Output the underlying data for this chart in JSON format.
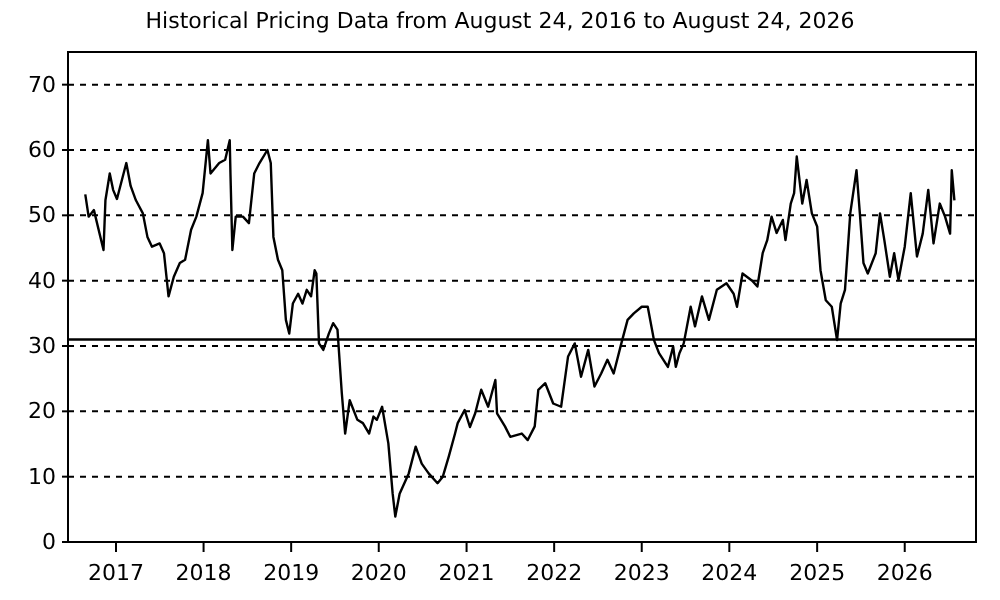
{
  "chart_data": {
    "type": "line",
    "title": "Historical Pricing Data from August 24, 2016 to August 24, 2026",
    "x": [
      "2016-08-26",
      "2016-09-09",
      "2016-10-01",
      "2016-11-10",
      "2016-11-18",
      "2016-12-06",
      "2016-12-20",
      "2017-01-05",
      "2017-02-13",
      "2017-03-03",
      "2017-03-25",
      "2017-04-23",
      "2017-05-12",
      "2017-05-31",
      "2017-07-02",
      "2017-07-20",
      "2017-08-08",
      "2017-08-30",
      "2017-09-24",
      "2017-10-16",
      "2017-11-10",
      "2017-12-02",
      "2017-12-28",
      "2018-01-19",
      "2018-01-30",
      "2018-03-07",
      "2018-04-01",
      "2018-04-20",
      "2018-04-23",
      "2018-05-01",
      "2018-05-15",
      "2018-06-14",
      "2018-07-09",
      "2018-07-31",
      "2018-08-22",
      "2018-09-24",
      "2018-10-08",
      "2018-10-19",
      "2018-11-07",
      "2018-11-25",
      "2018-12-10",
      "2018-12-24",
      "2019-01-08",
      "2019-01-30",
      "2019-02-17",
      "2019-03-07",
      "2019-03-25",
      "2019-04-09",
      "2019-04-16",
      "2019-04-27",
      "2019-05-15",
      "2019-06-07",
      "2019-06-25",
      "2019-07-13",
      "2019-07-31",
      "2019-08-14",
      "2019-09-02",
      "2019-10-04",
      "2019-10-27",
      "2019-11-22",
      "2019-12-10",
      "2019-12-24",
      "2020-01-15",
      "2020-02-10",
      "2020-02-28",
      "2020-03-10",
      "2020-03-28",
      "2020-05-05",
      "2020-06-03",
      "2020-06-28",
      "2020-07-27",
      "2020-09-02",
      "2020-09-24",
      "2020-10-19",
      "2020-11-14",
      "2020-11-25",
      "2020-12-24",
      "2021-01-15",
      "2021-02-06",
      "2021-03-03",
      "2021-04-01",
      "2021-05-01",
      "2021-05-08",
      "2021-06-10",
      "2021-07-02",
      "2021-08-19",
      "2021-09-13",
      "2021-10-12",
      "2021-10-27",
      "2021-11-25",
      "2021-12-28",
      "2022-01-30",
      "2022-02-28",
      "2022-03-28",
      "2022-04-23",
      "2022-05-23",
      "2022-06-18",
      "2022-07-16",
      "2022-08-11",
      "2022-09-06",
      "2022-10-08",
      "2022-11-03",
      "2022-11-29",
      "2023-01-01",
      "2023-01-26",
      "2023-02-21",
      "2023-03-14",
      "2023-04-20",
      "2023-05-12",
      "2023-05-23",
      "2023-06-07",
      "2023-06-25",
      "2023-07-24",
      "2023-08-11",
      "2023-09-09",
      "2023-10-08",
      "2023-11-10",
      "2023-12-20",
      "2024-01-19",
      "2024-02-02",
      "2024-02-25",
      "2024-04-05",
      "2024-04-27",
      "2024-05-19",
      "2024-06-07",
      "2024-06-25",
      "2024-07-16",
      "2024-08-11",
      "2024-08-22",
      "2024-09-13",
      "2024-09-27",
      "2024-10-08",
      "2024-10-31",
      "2024-11-18",
      "2024-12-10",
      "2025-01-01",
      "2025-01-15",
      "2025-02-06",
      "2025-03-03",
      "2025-03-25",
      "2025-04-09",
      "2025-04-27",
      "2025-05-19",
      "2025-06-14",
      "2025-06-28",
      "2025-07-13",
      "2025-07-31",
      "2025-09-02",
      "2025-09-20",
      "2025-10-08",
      "2025-10-31",
      "2025-11-18",
      "2025-12-06",
      "2026-01-01",
      "2026-01-26",
      "2026-02-21",
      "2026-03-17",
      "2026-04-09",
      "2026-05-01",
      "2026-05-27",
      "2026-06-18",
      "2026-07-09",
      "2026-07-16",
      "2026-07-27"
    ],
    "series": [
      {
        "color": "#000000",
        "values": [
          53.2,
          49.8,
          50.8,
          44.7,
          52.3,
          56.4,
          53.9,
          52.5,
          58,
          54.5,
          52.3,
          50.3,
          46.7,
          45.2,
          45.7,
          44.2,
          37.6,
          40.6,
          42.7,
          43.2,
          47.8,
          49.8,
          53.4,
          61.5,
          56.4,
          58,
          58.5,
          61.5,
          56.4,
          44.7,
          49.8,
          49.8,
          48.8,
          56.4,
          58,
          60,
          58,
          46.7,
          43.2,
          41.6,
          34,
          31.9,
          36.5,
          38,
          36.5,
          38.6,
          37.6,
          41.6,
          41.1,
          30.4,
          29.4,
          31.9,
          33.5,
          32.5,
          22.8,
          16.6,
          21.7,
          18.7,
          18.2,
          16.6,
          19.2,
          18.7,
          20.7,
          15.1,
          7.4,
          3.9,
          7.4,
          10.5,
          14.6,
          12,
          10.5,
          9,
          10,
          13.1,
          16.6,
          18.2,
          20.2,
          17.6,
          19.7,
          23.3,
          20.7,
          24.8,
          19.7,
          17.7,
          16.1,
          16.6,
          15.6,
          17.7,
          23.3,
          24.3,
          21.2,
          20.7,
          28.4,
          30.4,
          25.3,
          29.4,
          23.8,
          25.8,
          27.9,
          25.8,
          30.4,
          34,
          35,
          36,
          36,
          30.9,
          28.9,
          26.8,
          29.9,
          26.8,
          28.9,
          30.4,
          36,
          33,
          37.6,
          34,
          38.6,
          39.6,
          38,
          36,
          41.1,
          40,
          39.1,
          44.2,
          46.2,
          49.8,
          47.3,
          49.3,
          46.2,
          51.8,
          53.4,
          59,
          51.8,
          55.4,
          50.3,
          48.3,
          41.6,
          37,
          36,
          30.9,
          36.5,
          38.6,
          50.3,
          56.9,
          50.3,
          42.7,
          41.1,
          44.2,
          50.3,
          46.2,
          40.6,
          44.2,
          40.1,
          45.2,
          53.4,
          43.7,
          47.2,
          53.9,
          45.7,
          51.8,
          49.8,
          47.2,
          56.9,
          52.3
        ]
      }
    ],
    "xlim": [
      "2016-06-15",
      "2026-10-25"
    ],
    "xticks": [
      "2017",
      "2018",
      "2019",
      "2020",
      "2021",
      "2022",
      "2023",
      "2024",
      "2025",
      "2026"
    ],
    "ylim": [
      0,
      75
    ],
    "yticks": [
      0,
      10,
      20,
      30,
      40,
      50,
      60,
      70
    ],
    "grid": "y",
    "line_style": "solid",
    "marker": "none",
    "ref_lines": [
      {
        "axis": "y",
        "value": 31,
        "color": "#000000"
      }
    ]
  }
}
